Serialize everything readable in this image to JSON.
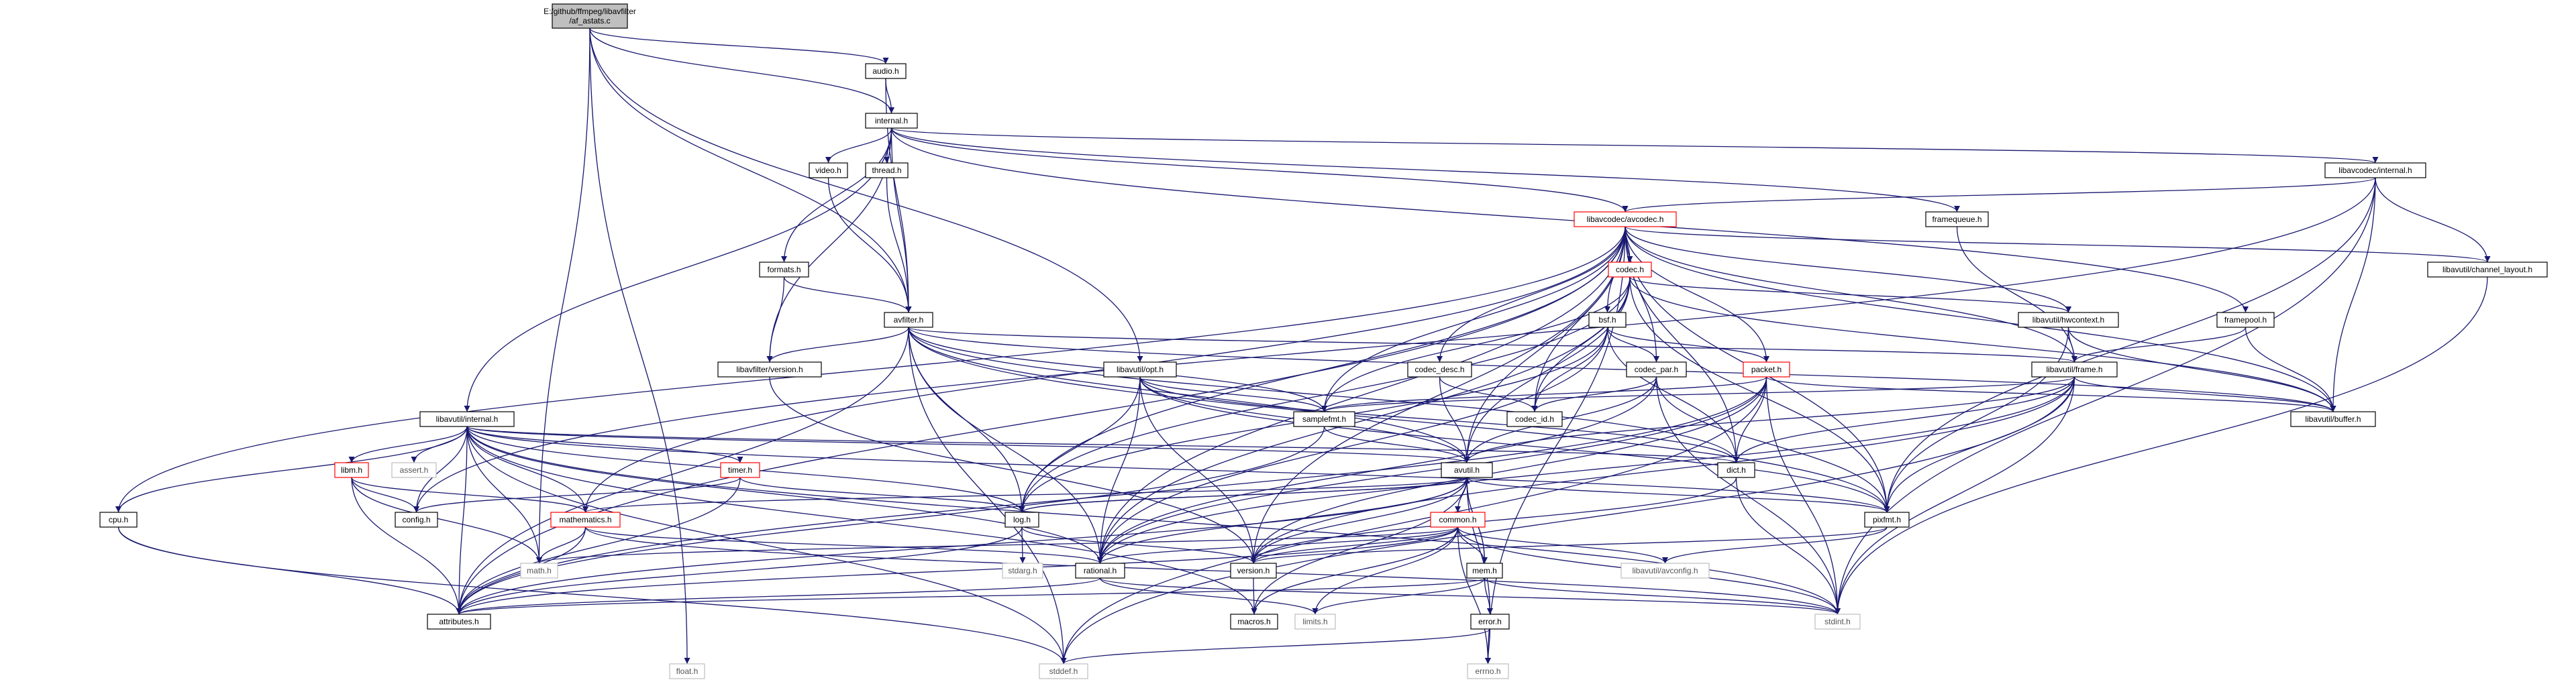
{
  "colors": {
    "edge": "#191970",
    "root_fill": "#bfbfbf",
    "root_stroke": "#000000",
    "normal_stroke": "#000000",
    "truncated_stroke": "#ff0000",
    "system_stroke": "#bfbfbf",
    "system_text": "#555555",
    "node_fill": "#ffffff"
  },
  "root": {
    "lines": [
      "E:/github/ffmpeg/libavfilter",
      "/af_astats.c"
    ]
  },
  "nodes": [
    {
      "id": "audio_h",
      "label": "audio.h",
      "kind": "normal"
    },
    {
      "id": "internal_h",
      "label": "internal.h",
      "kind": "normal"
    },
    {
      "id": "video_h",
      "label": "video.h",
      "kind": "normal"
    },
    {
      "id": "thread_h",
      "label": "thread.h",
      "kind": "normal"
    },
    {
      "id": "lavc_internal_h",
      "label": "libavcodec/internal.h",
      "kind": "normal"
    },
    {
      "id": "framequeue_h",
      "label": "framequeue.h",
      "kind": "normal"
    },
    {
      "id": "lavc_avcodec_h",
      "label": "libavcodec/avcodec.h",
      "kind": "truncated"
    },
    {
      "id": "formats_h",
      "label": "formats.h",
      "kind": "normal"
    },
    {
      "id": "codec_h",
      "label": "codec.h",
      "kind": "truncated"
    },
    {
      "id": "channel_layout_h",
      "label": "libavutil/channel_layout.h",
      "kind": "normal"
    },
    {
      "id": "avfilter_h",
      "label": "avfilter.h",
      "kind": "normal"
    },
    {
      "id": "bsf_h",
      "label": "bsf.h",
      "kind": "normal"
    },
    {
      "id": "hwcontext_h",
      "label": "libavutil/hwcontext.h",
      "kind": "normal"
    },
    {
      "id": "framepool_h",
      "label": "framepool.h",
      "kind": "normal"
    },
    {
      "id": "lavfi_version_h",
      "label": "libavfilter/version.h",
      "kind": "normal"
    },
    {
      "id": "opt_h",
      "label": "libavutil/opt.h",
      "kind": "normal"
    },
    {
      "id": "codec_desc_h",
      "label": "codec_desc.h",
      "kind": "normal"
    },
    {
      "id": "codec_par_h",
      "label": "codec_par.h",
      "kind": "normal"
    },
    {
      "id": "packet_h",
      "label": "packet.h",
      "kind": "truncated"
    },
    {
      "id": "frame_h",
      "label": "libavutil/frame.h",
      "kind": "normal"
    },
    {
      "id": "lavu_internal_h",
      "label": "libavutil/internal.h",
      "kind": "normal"
    },
    {
      "id": "samplefmt_h",
      "label": "samplefmt.h",
      "kind": "normal"
    },
    {
      "id": "codec_id_h",
      "label": "codec_id.h",
      "kind": "normal"
    },
    {
      "id": "buffer_h",
      "label": "libavutil/buffer.h",
      "kind": "normal"
    },
    {
      "id": "libm_h",
      "label": "libm.h",
      "kind": "truncated"
    },
    {
      "id": "assert_h",
      "label": "assert.h",
      "kind": "system"
    },
    {
      "id": "timer_h",
      "label": "timer.h",
      "kind": "truncated"
    },
    {
      "id": "avutil_h",
      "label": "avutil.h",
      "kind": "normal"
    },
    {
      "id": "dict_h",
      "label": "dict.h",
      "kind": "normal"
    },
    {
      "id": "cpu_h",
      "label": "cpu.h",
      "kind": "normal"
    },
    {
      "id": "config_h",
      "label": "config.h",
      "kind": "normal"
    },
    {
      "id": "log_h",
      "label": "log.h",
      "kind": "normal"
    },
    {
      "id": "pixfmt_h",
      "label": "pixfmt.h",
      "kind": "normal"
    },
    {
      "id": "mathematics_h",
      "label": "mathematics.h",
      "kind": "truncated"
    },
    {
      "id": "common_h",
      "label": "common.h",
      "kind": "truncated"
    },
    {
      "id": "math_h",
      "label": "math.h",
      "kind": "system"
    },
    {
      "id": "stdarg_h",
      "label": "stdarg.h",
      "kind": "system"
    },
    {
      "id": "rational_h",
      "label": "rational.h",
      "kind": "normal"
    },
    {
      "id": "version_h",
      "label": "version.h",
      "kind": "normal"
    },
    {
      "id": "mem_h",
      "label": "mem.h",
      "kind": "normal"
    },
    {
      "id": "avconfig_h",
      "label": "libavutil/avconfig.h",
      "kind": "system"
    },
    {
      "id": "attributes_h",
      "label": "attributes.h",
      "kind": "normal"
    },
    {
      "id": "macros_h",
      "label": "macros.h",
      "kind": "normal"
    },
    {
      "id": "limits_h",
      "label": "limits.h",
      "kind": "system"
    },
    {
      "id": "stdint_h",
      "label": "stdint.h",
      "kind": "system"
    },
    {
      "id": "error_h",
      "label": "error.h",
      "kind": "normal"
    },
    {
      "id": "float_h",
      "label": "float.h",
      "kind": "system"
    },
    {
      "id": "stddef_h",
      "label": "stddef.h",
      "kind": "system"
    },
    {
      "id": "errno_h",
      "label": "errno.h",
      "kind": "system"
    }
  ],
  "edges": [
    [
      "root",
      "audio_h"
    ],
    [
      "root",
      "internal_h"
    ],
    [
      "root",
      "float_h"
    ],
    [
      "root",
      "math_h"
    ],
    [
      "root",
      "opt_h"
    ],
    [
      "root",
      "avfilter_h"
    ],
    [
      "audio_h",
      "internal_h"
    ],
    [
      "audio_h",
      "avfilter_h"
    ],
    [
      "internal_h",
      "video_h"
    ],
    [
      "internal_h",
      "thread_h"
    ],
    [
      "internal_h",
      "lavc_internal_h"
    ],
    [
      "internal_h",
      "framequeue_h"
    ],
    [
      "internal_h",
      "lavc_avcodec_h"
    ],
    [
      "internal_h",
      "formats_h"
    ],
    [
      "internal_h",
      "avfilter_h"
    ],
    [
      "internal_h",
      "lavfi_version_h"
    ],
    [
      "internal_h",
      "lavu_internal_h"
    ],
    [
      "internal_h",
      "framepool_h"
    ],
    [
      "video_h",
      "avfilter_h"
    ],
    [
      "thread_h",
      "avfilter_h"
    ],
    [
      "lavc_internal_h",
      "lavc_avcodec_h"
    ],
    [
      "lavc_internal_h",
      "channel_layout_h"
    ],
    [
      "lavc_internal_h",
      "buffer_h"
    ],
    [
      "lavc_internal_h",
      "pixfmt_h"
    ],
    [
      "lavc_internal_h",
      "stdint_h"
    ],
    [
      "lavc_internal_h",
      "config_h"
    ],
    [
      "framequeue_h",
      "frame_h"
    ],
    [
      "lavc_avcodec_h",
      "codec_h"
    ],
    [
      "lavc_avcodec_h",
      "bsf_h"
    ],
    [
      "lavc_avcodec_h",
      "codec_desc_h"
    ],
    [
      "lavc_avcodec_h",
      "codec_par_h"
    ],
    [
      "lavc_avcodec_h",
      "packet_h"
    ],
    [
      "lavc_avcodec_h",
      "codec_id_h"
    ],
    [
      "lavc_avcodec_h",
      "hwcontext_h"
    ],
    [
      "lavc_avcodec_h",
      "frame_h"
    ],
    [
      "lavc_avcodec_h",
      "buffer_h"
    ],
    [
      "lavc_avcodec_h",
      "dict_h"
    ],
    [
      "lavc_avcodec_h",
      "samplefmt_h"
    ],
    [
      "lavc_avcodec_h",
      "avutil_h"
    ],
    [
      "lavc_avcodec_h",
      "log_h"
    ],
    [
      "lavc_avcodec_h",
      "rational_h"
    ],
    [
      "lavc_avcodec_h",
      "pixfmt_h"
    ],
    [
      "lavc_avcodec_h",
      "attributes_h"
    ],
    [
      "lavc_avcodec_h",
      "channel_layout_h"
    ],
    [
      "lavc_avcodec_h",
      "mathematics_h"
    ],
    [
      "lavc_avcodec_h",
      "cpu_h"
    ],
    [
      "lavc_avcodec_h",
      "errno_h"
    ],
    [
      "lavc_avcodec_h",
      "version_h"
    ],
    [
      "formats_h",
      "avfilter_h"
    ],
    [
      "formats_h",
      "lavfi_version_h"
    ],
    [
      "codec_h",
      "codec_id_h"
    ],
    [
      "codec_h",
      "samplefmt_h"
    ],
    [
      "codec_h",
      "avutil_h"
    ],
    [
      "codec_h",
      "hwcontext_h"
    ],
    [
      "codec_h",
      "log_h"
    ],
    [
      "codec_h",
      "pixfmt_h"
    ],
    [
      "codec_h",
      "rational_h"
    ],
    [
      "codec_h",
      "buffer_h"
    ],
    [
      "channel_layout_h",
      "stdint_h"
    ],
    [
      "avfilter_h",
      "lavfi_version_h"
    ],
    [
      "avfilter_h",
      "frame_h"
    ],
    [
      "avfilter_h",
      "buffer_h"
    ],
    [
      "avfilter_h",
      "dict_h"
    ],
    [
      "avfilter_h",
      "log_h"
    ],
    [
      "avfilter_h",
      "samplefmt_h"
    ],
    [
      "avfilter_h",
      "avutil_h"
    ],
    [
      "avfilter_h",
      "pixfmt_h"
    ],
    [
      "avfilter_h",
      "rational_h"
    ],
    [
      "avfilter_h",
      "attributes_h"
    ],
    [
      "avfilter_h",
      "stddef_h"
    ],
    [
      "bsf_h",
      "codec_id_h"
    ],
    [
      "bsf_h",
      "codec_par_h"
    ],
    [
      "bsf_h",
      "packet_h"
    ],
    [
      "bsf_h",
      "dict_h"
    ],
    [
      "bsf_h",
      "log_h"
    ],
    [
      "bsf_h",
      "rational_h"
    ],
    [
      "hwcontext_h",
      "frame_h"
    ],
    [
      "hwcontext_h",
      "buffer_h"
    ],
    [
      "hwcontext_h",
      "pixfmt_h"
    ],
    [
      "framepool_h",
      "frame_h"
    ],
    [
      "framepool_h",
      "buffer_h"
    ],
    [
      "lavfi_version_h",
      "version_h"
    ],
    [
      "opt_h",
      "rational_h"
    ],
    [
      "opt_h",
      "avutil_h"
    ],
    [
      "opt_h",
      "dict_h"
    ],
    [
      "opt_h",
      "log_h"
    ],
    [
      "opt_h",
      "pixfmt_h"
    ],
    [
      "opt_h",
      "samplefmt_h"
    ],
    [
      "opt_h",
      "version_h"
    ],
    [
      "codec_desc_h",
      "codec_id_h"
    ],
    [
      "codec_desc_h",
      "avutil_h"
    ],
    [
      "codec_par_h",
      "codec_id_h"
    ],
    [
      "codec_par_h",
      "avutil_h"
    ],
    [
      "codec_par_h",
      "rational_h"
    ],
    [
      "codec_par_h",
      "pixfmt_h"
    ],
    [
      "codec_par_h",
      "stdint_h"
    ],
    [
      "packet_h",
      "attributes_h"
    ],
    [
      "packet_h",
      "buffer_h"
    ],
    [
      "packet_h",
      "dict_h"
    ],
    [
      "packet_h",
      "rational_h"
    ],
    [
      "packet_h",
      "version_h"
    ],
    [
      "packet_h",
      "stdint_h"
    ],
    [
      "packet_h",
      "stddef_h"
    ],
    [
      "packet_h",
      "samplefmt_h"
    ],
    [
      "frame_h",
      "avutil_h"
    ],
    [
      "frame_h",
      "buffer_h"
    ],
    [
      "frame_h",
      "dict_h"
    ],
    [
      "frame_h",
      "rational_h"
    ],
    [
      "frame_h",
      "samplefmt_h"
    ],
    [
      "frame_h",
      "pixfmt_h"
    ],
    [
      "frame_h",
      "version_h"
    ],
    [
      "frame_h",
      "stdint_h"
    ],
    [
      "frame_h",
      "stddef_h"
    ],
    [
      "lavu_internal_h",
      "libm_h"
    ],
    [
      "lavu_internal_h",
      "assert_h"
    ],
    [
      "lavu_internal_h",
      "timer_h"
    ],
    [
      "lavu_internal_h",
      "config_h"
    ],
    [
      "lavu_internal_h",
      "attributes_h"
    ],
    [
      "lavu_internal_h",
      "dict_h"
    ],
    [
      "lavu_internal_h",
      "pixfmt_h"
    ],
    [
      "lavu_internal_h",
      "cpu_h"
    ],
    [
      "lavu_internal_h",
      "macros_h"
    ],
    [
      "lavu_internal_h",
      "avutil_h"
    ],
    [
      "lavu_internal_h",
      "mathematics_h"
    ],
    [
      "lavu_internal_h",
      "log_h"
    ],
    [
      "lavu_internal_h",
      "stddef_h"
    ],
    [
      "lavu_internal_h",
      "stdint_h"
    ],
    [
      "lavu_internal_h",
      "rational_h"
    ],
    [
      "lavu_internal_h",
      "math_h"
    ],
    [
      "samplefmt_h",
      "avutil_h"
    ],
    [
      "samplefmt_h",
      "attributes_h"
    ],
    [
      "libm_h",
      "config_h"
    ],
    [
      "libm_h",
      "attributes_h"
    ],
    [
      "libm_h",
      "mathematics_h"
    ],
    [
      "libm_h",
      "math_h"
    ],
    [
      "timer_h",
      "config_h"
    ],
    [
      "timer_h",
      "log_h"
    ],
    [
      "timer_h",
      "attributes_h"
    ],
    [
      "avutil_h",
      "common_h"
    ],
    [
      "avutil_h",
      "error_h"
    ],
    [
      "avutil_h",
      "macros_h"
    ],
    [
      "avutil_h",
      "mathematics_h"
    ],
    [
      "avutil_h",
      "rational_h"
    ],
    [
      "avutil_h",
      "log_h"
    ],
    [
      "avutil_h",
      "pixfmt_h"
    ],
    [
      "avutil_h",
      "version_h"
    ],
    [
      "avutil_h",
      "attributes_h"
    ],
    [
      "avutil_h",
      "mem_h"
    ],
    [
      "dict_h",
      "stdint_h"
    ],
    [
      "dict_h",
      "version_h"
    ],
    [
      "cpu_h",
      "attributes_h"
    ],
    [
      "cpu_h",
      "stddef_h"
    ],
    [
      "log_h",
      "attributes_h"
    ],
    [
      "log_h",
      "version_h"
    ],
    [
      "log_h",
      "avutil_h"
    ],
    [
      "log_h",
      "stdarg_h"
    ],
    [
      "pixfmt_h",
      "version_h"
    ],
    [
      "pixfmt_h",
      "avconfig_h"
    ],
    [
      "mathematics_h",
      "attributes_h"
    ],
    [
      "mathematics_h",
      "math_h"
    ],
    [
      "mathematics_h",
      "rational_h"
    ],
    [
      "mathematics_h",
      "stdint_h"
    ],
    [
      "common_h",
      "attributes_h"
    ],
    [
      "common_h",
      "macros_h"
    ],
    [
      "common_h",
      "mem_h"
    ],
    [
      "common_h",
      "version_h"
    ],
    [
      "common_h",
      "avconfig_h"
    ],
    [
      "common_h",
      "errno_h"
    ],
    [
      "common_h",
      "limits_h"
    ],
    [
      "common_h",
      "math_h"
    ],
    [
      "common_h",
      "stdint_h"
    ],
    [
      "common_h",
      "rational_h"
    ],
    [
      "rational_h",
      "stdint_h"
    ],
    [
      "rational_h",
      "limits_h"
    ],
    [
      "rational_h",
      "attributes_h"
    ],
    [
      "version_h",
      "macros_h"
    ],
    [
      "mem_h",
      "attributes_h"
    ],
    [
      "mem_h",
      "error_h"
    ],
    [
      "mem_h",
      "avutil_h"
    ],
    [
      "mem_h",
      "stdint_h"
    ],
    [
      "mem_h",
      "limits_h"
    ],
    [
      "error_h",
      "errno_h"
    ],
    [
      "error_h",
      "stddef_h"
    ]
  ]
}
